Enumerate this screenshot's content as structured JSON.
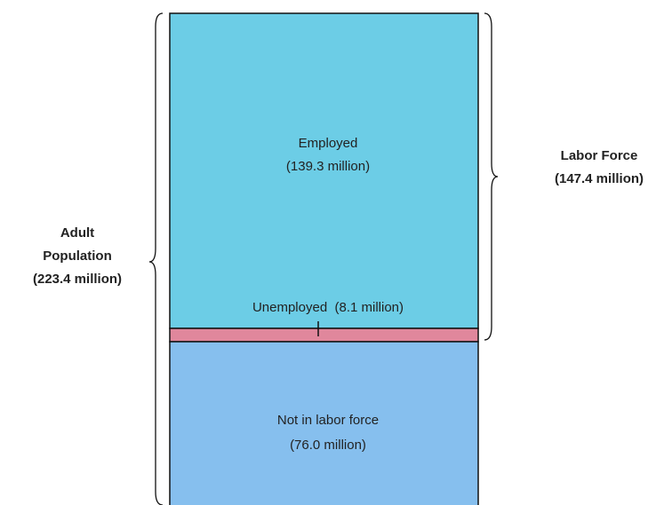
{
  "boxes": [
    {
      "label": "Employed",
      "amount": "(139.3 million)"
    },
    {
      "label": "Unemployed  (8.1 million)"
    },
    {
      "label": "Not in labor force",
      "amount": "(76.0 million)"
    }
  ],
  "brackets": {
    "left": {
      "lines": [
        "Adult",
        "Population",
        "(223.4 million)"
      ]
    },
    "right": {
      "lines": [
        "Labor Force",
        "(147.4 million)"
      ]
    }
  }
}
